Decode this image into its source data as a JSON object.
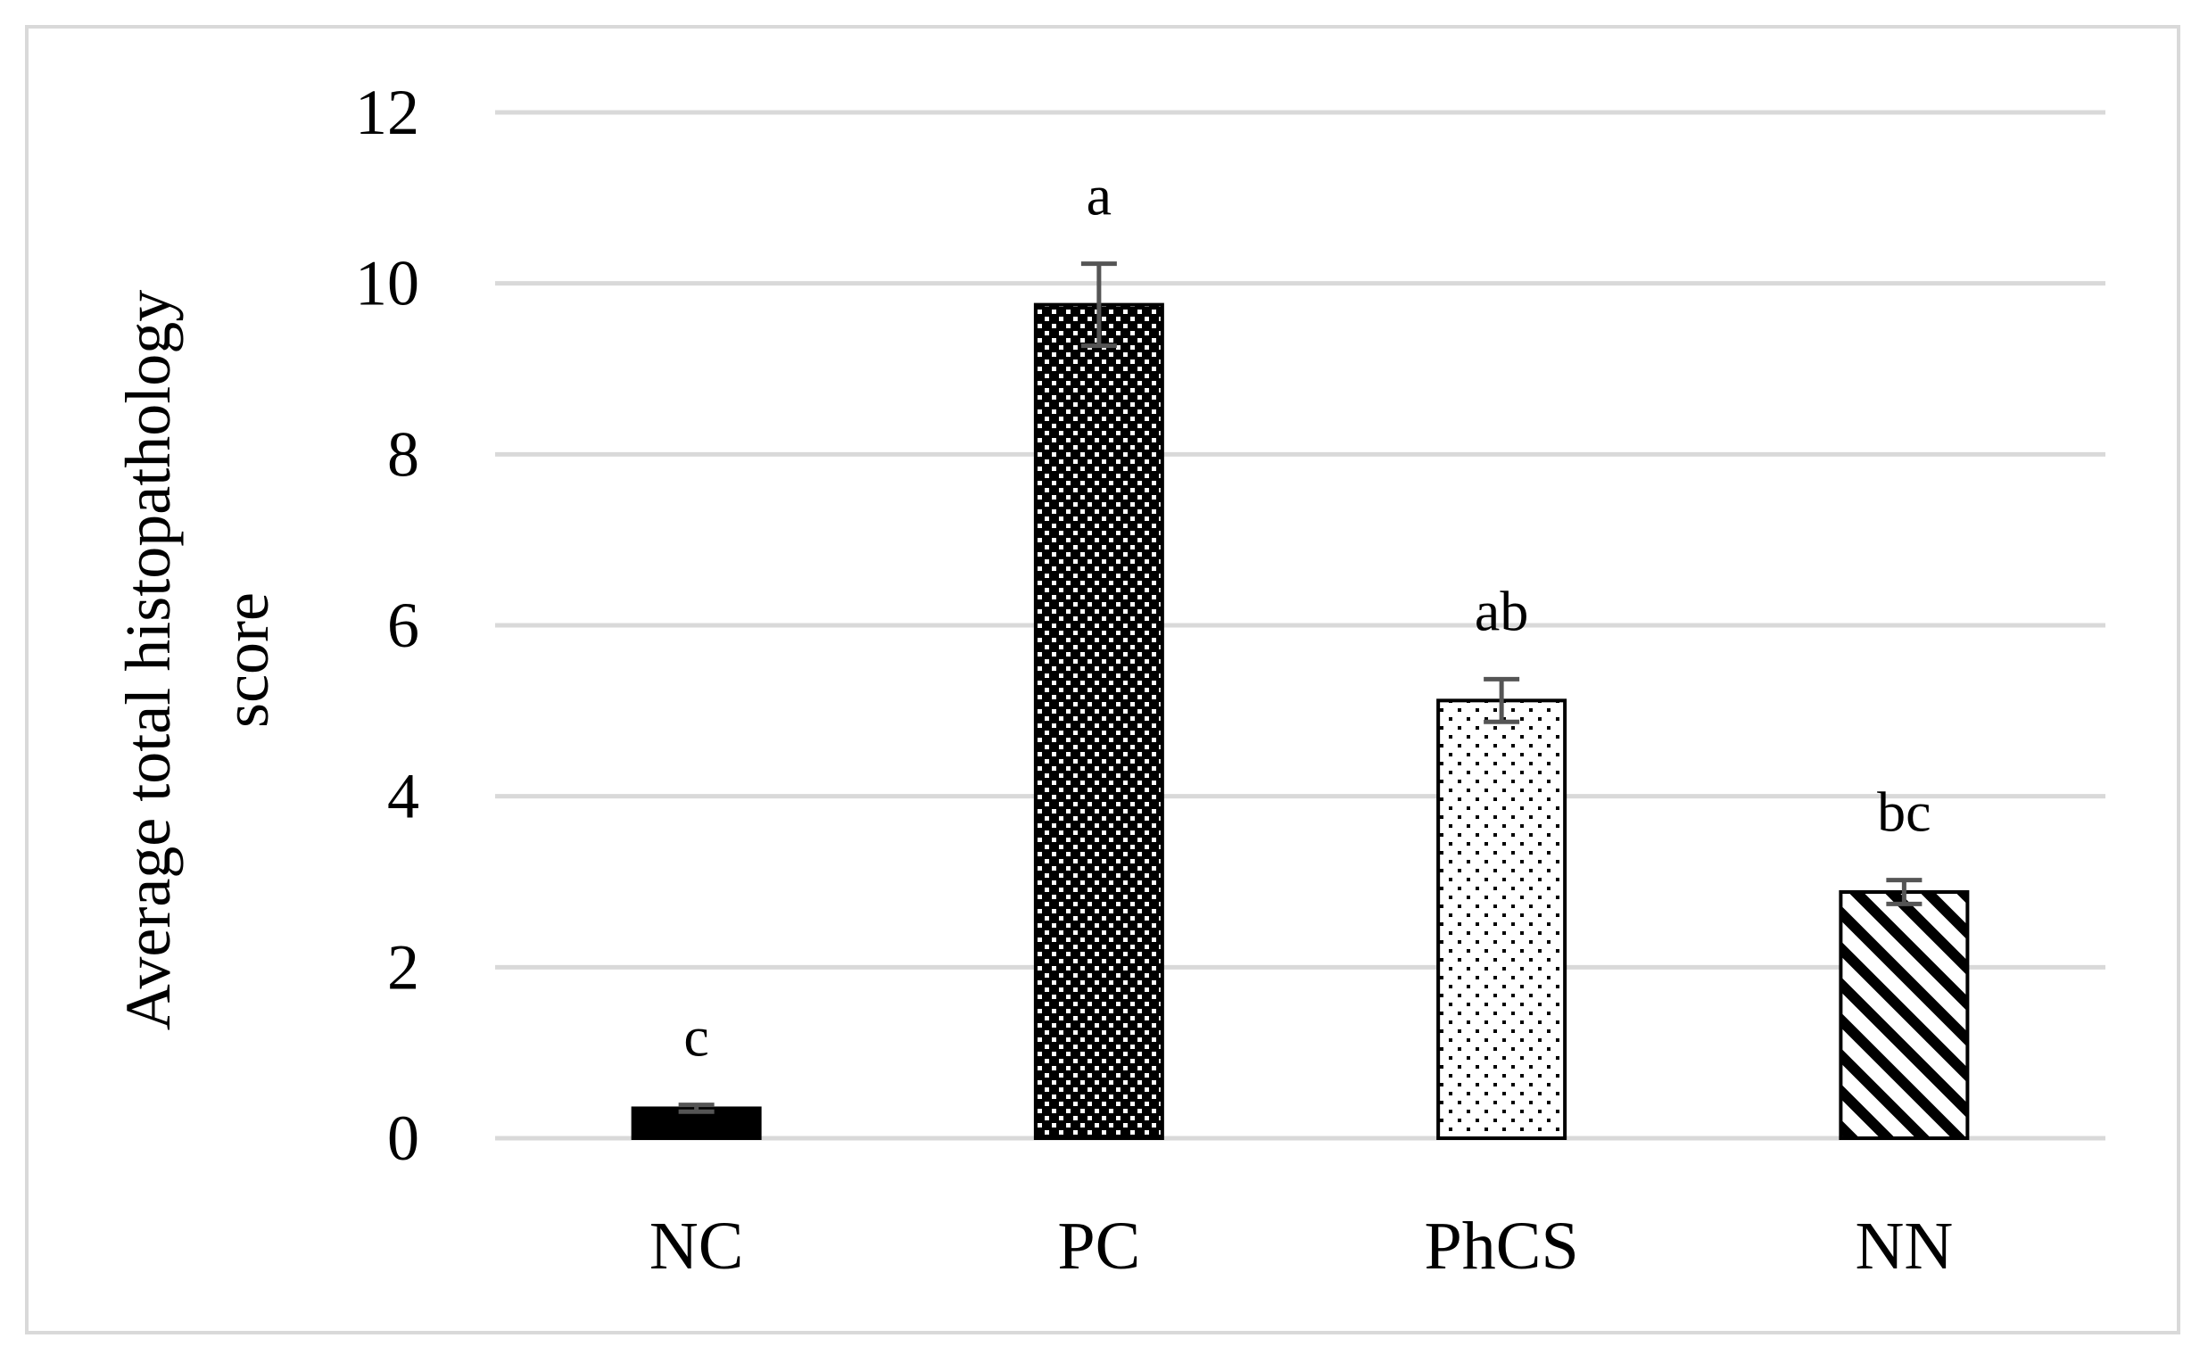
{
  "chart_data": {
    "type": "bar",
    "categories": [
      "NC",
      "PC",
      "PhCS",
      "NN"
    ],
    "values": [
      0.35,
      9.75,
      5.12,
      2.88
    ],
    "errors": [
      0.04,
      0.48,
      0.25,
      0.14
    ],
    "significance_labels": [
      "c",
      "a",
      "ab",
      "bc"
    ],
    "patterns": [
      "solid",
      "dense-dots",
      "sparse-dots",
      "diagonal-stripes"
    ],
    "ylabel_line1": "Average total histopathology",
    "ylabel_line2": "score",
    "ylim": [
      0,
      12
    ],
    "yticks": [
      0,
      2,
      4,
      6,
      8,
      10,
      12
    ],
    "grid": true,
    "colors": {
      "bar": "#000000",
      "grid": "#d9d9d9",
      "error_bar": "#555555",
      "frame": "#d9d9d9"
    }
  }
}
